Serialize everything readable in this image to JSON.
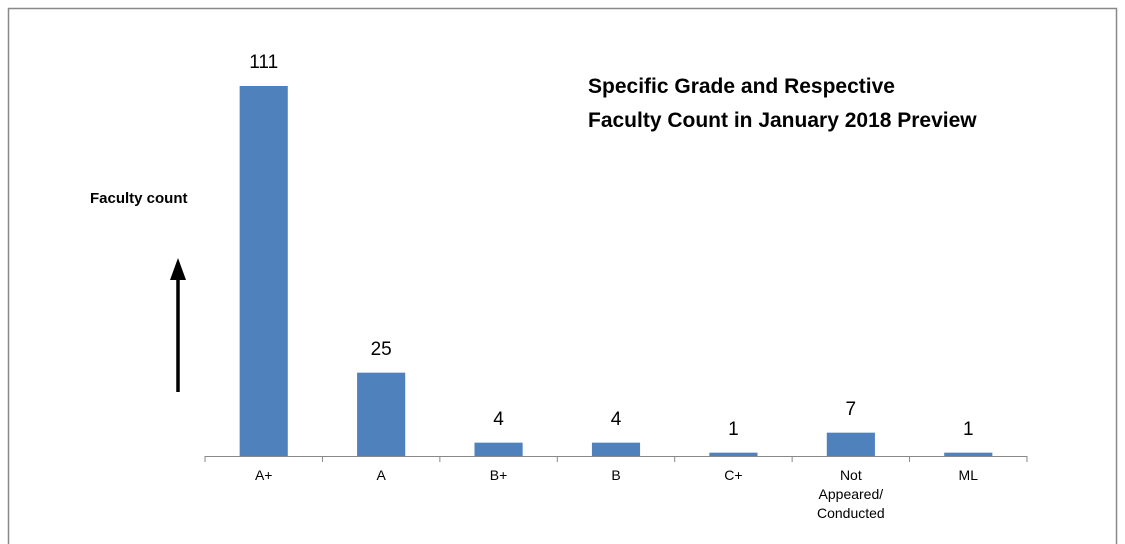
{
  "chart_data": {
    "type": "bar",
    "title": [
      "Specific Grade and Respective",
      "Faculty Count in January 2018 Preview"
    ],
    "y_label": "Faculty count",
    "categories": [
      "A+",
      "A",
      "B+",
      "B",
      "C+",
      "Not Appeared/ Conducted",
      "ML"
    ],
    "values": [
      111,
      25,
      4,
      4,
      1,
      7,
      1
    ],
    "color": "#4f81bd",
    "ylim": [
      0,
      120
    ]
  }
}
